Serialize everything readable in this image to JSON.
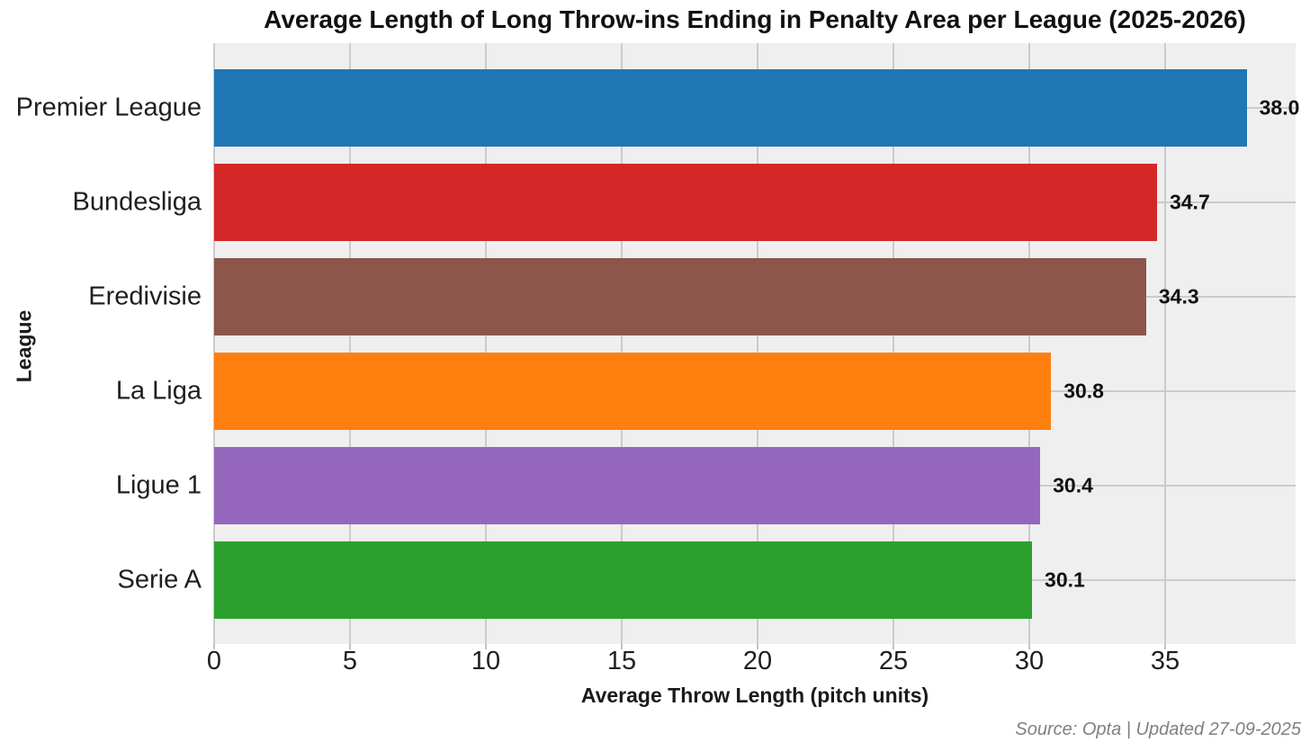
{
  "source_note": "Source: Opta | Updated 27-09-2025",
  "chart_data": {
    "type": "bar",
    "orientation": "horizontal",
    "title": "Average Length of Long Throw-ins Ending in Penalty Area per League (2025-2026)",
    "xlabel": "Average Throw Length (pitch units)",
    "ylabel": "League",
    "categories": [
      "Premier League",
      "Bundesliga",
      "Eredivisie",
      "La Liga",
      "Ligue 1",
      "Serie A"
    ],
    "values": [
      38.0,
      34.7,
      34.3,
      30.8,
      30.4,
      30.1
    ],
    "value_labels": [
      "38.0",
      "34.7",
      "34.3",
      "30.8",
      "30.4",
      "30.1"
    ],
    "bar_colors": [
      "#1f77b4",
      "#d62728",
      "#8c564b",
      "#ff7f0e",
      "#9467bd",
      "#2ca02c"
    ],
    "xlim": [
      0,
      39.8
    ],
    "xticks": [
      0,
      5,
      10,
      15,
      20,
      25,
      30,
      35
    ],
    "grid": true,
    "legend": false,
    "plot_background": "#efefef",
    "grid_color": "#cbcbcb",
    "tick_color": "#c2c2c2",
    "source_text_color": "#808080"
  }
}
